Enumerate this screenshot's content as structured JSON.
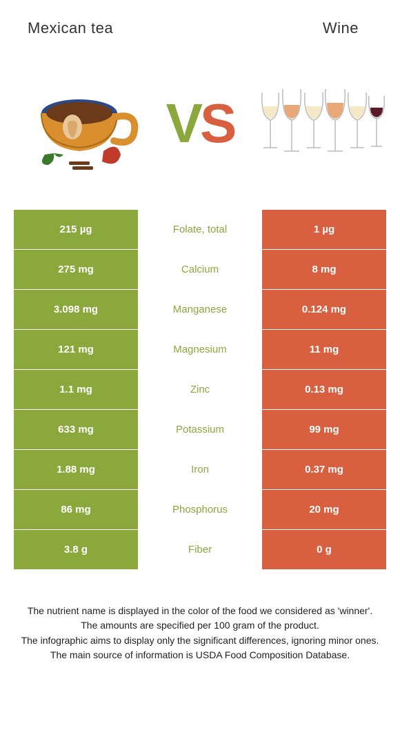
{
  "colors": {
    "left_bg": "#8aa83c",
    "right_bg": "#d85f3f",
    "mid_bg": "#ffffff",
    "cell_text": "#ffffff"
  },
  "header": {
    "left_title": "Mexican tea",
    "right_title": "Wine"
  },
  "vs": {
    "v": "V",
    "s": "S"
  },
  "rows": [
    {
      "left": "215 µg",
      "label": "Folate, total",
      "right": "1 µg",
      "winner": "left"
    },
    {
      "left": "275 mg",
      "label": "Calcium",
      "right": "8 mg",
      "winner": "left"
    },
    {
      "left": "3.098 mg",
      "label": "Manganese",
      "right": "0.124 mg",
      "winner": "left"
    },
    {
      "left": "121 mg",
      "label": "Magnesium",
      "right": "11 mg",
      "winner": "left"
    },
    {
      "left": "1.1 mg",
      "label": "Zinc",
      "right": "0.13 mg",
      "winner": "left"
    },
    {
      "left": "633 mg",
      "label": "Potassium",
      "right": "99 mg",
      "winner": "left"
    },
    {
      "left": "1.88 mg",
      "label": "Iron",
      "right": "0.37 mg",
      "winner": "left"
    },
    {
      "left": "86 mg",
      "label": "Phosphorus",
      "right": "20 mg",
      "winner": "left"
    },
    {
      "left": "3.8 g",
      "label": "Fiber",
      "right": "0 g",
      "winner": "left"
    }
  ],
  "footer": {
    "line1": "The nutrient name is displayed in the color of the food we considered as 'winner'.",
    "line2": "The amounts are specified per 100 gram of the product.",
    "line3": "The infographic aims to display only the significant differences, ignoring minor ones.",
    "line4": "The main source of information is USDA Food Composition Database."
  }
}
